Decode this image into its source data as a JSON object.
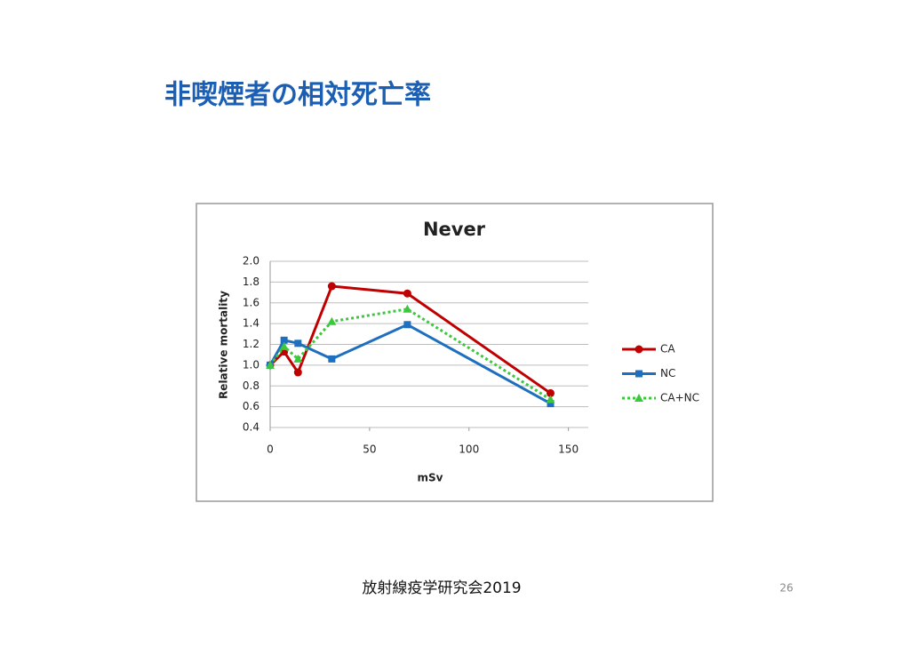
{
  "header": {
    "title": "非喫煙者の相対死亡率"
  },
  "footer": {
    "text": "放射線疫学研究会2019",
    "page": "26"
  },
  "chart_data": {
    "type": "line",
    "title": "Never",
    "xlabel": "mSv",
    "ylabel": "Relative mortality",
    "x": [
      0,
      7,
      14,
      31,
      69,
      141
    ],
    "series": [
      {
        "name": "CA",
        "color": "#c00000",
        "marker": "circle",
        "dash": false,
        "values": [
          1.0,
          1.13,
          0.93,
          1.76,
          1.69,
          0.73
        ]
      },
      {
        "name": "NC",
        "color": "#1f6fbf",
        "marker": "square",
        "dash": false,
        "values": [
          1.0,
          1.24,
          1.21,
          1.06,
          1.39,
          0.63
        ]
      },
      {
        "name": "CA+NC",
        "color": "#3cc83c",
        "marker": "triangle",
        "dash": true,
        "values": [
          1.0,
          1.18,
          1.06,
          1.42,
          1.54,
          0.67
        ]
      }
    ],
    "xlim": [
      0,
      160
    ],
    "xticks": [
      0,
      50,
      100,
      150
    ],
    "ylim": [
      0.4,
      2.0
    ],
    "yticks": [
      0.4,
      0.6,
      0.8,
      {
        "value": 1.0,
        "label": "1.0"
      },
      1.2,
      1.4,
      1.6,
      1.8,
      {
        "value": 2.0,
        "label": "2.0"
      }
    ],
    "grid": true,
    "legend": "right"
  }
}
